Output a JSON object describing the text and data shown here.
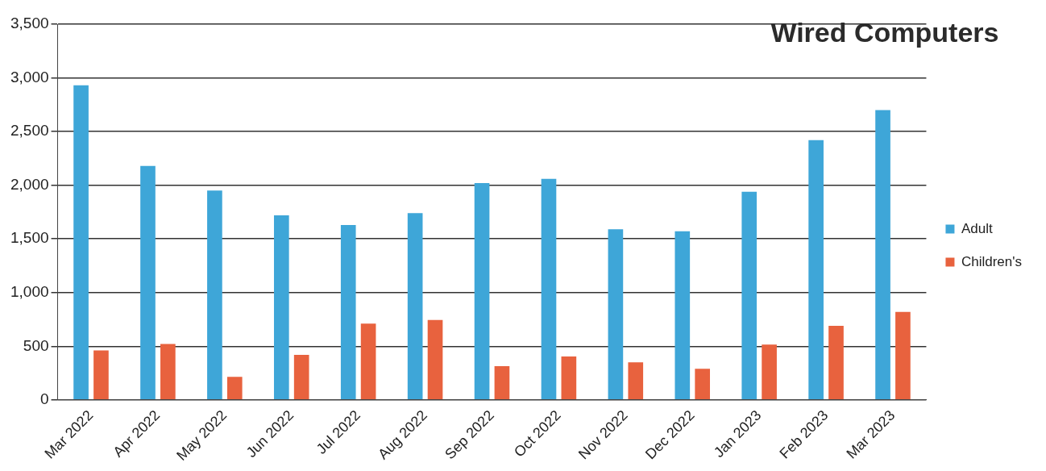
{
  "chart_data": {
    "type": "bar",
    "title": "Wired Computers",
    "categories": [
      "Mar 2022",
      "Apr 2022",
      "May 2022",
      "Jun 2022",
      "Jul 2022",
      "Aug 2022",
      "Sep 2022",
      "Oct 2022",
      "Nov 2022",
      "Dec 2022",
      "Jan 2023",
      "Feb 2023",
      "Mar 2023"
    ],
    "series": [
      {
        "name": "Adult",
        "color": "#3ea6d8",
        "values": [
          2930,
          2180,
          1950,
          1720,
          1630,
          1740,
          2020,
          2060,
          1590,
          1570,
          1940,
          2420,
          2700
        ]
      },
      {
        "name": "Children's",
        "color": "#e8623e",
        "values": [
          460,
          520,
          215,
          420,
          710,
          745,
          315,
          405,
          350,
          290,
          515,
          690,
          820
        ]
      }
    ],
    "ylim": [
      0,
      3500
    ],
    "yticks": [
      {
        "value": 0,
        "label": "0"
      },
      {
        "value": 500,
        "label": "500"
      },
      {
        "value": 1000,
        "label": "1,000"
      },
      {
        "value": 1500,
        "label": "1,500"
      },
      {
        "value": 2000,
        "label": "2,000"
      },
      {
        "value": 2500,
        "label": "2,500"
      },
      {
        "value": 3000,
        "label": "3,000"
      },
      {
        "value": 3500,
        "label": "3,500"
      }
    ],
    "grid": "y",
    "legend": "right"
  }
}
